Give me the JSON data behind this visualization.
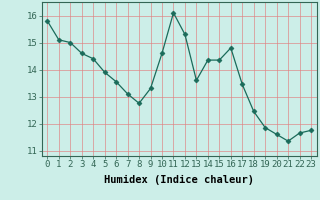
{
  "x": [
    0,
    1,
    2,
    3,
    4,
    5,
    6,
    7,
    8,
    9,
    10,
    11,
    12,
    13,
    14,
    15,
    16,
    17,
    18,
    19,
    20,
    21,
    22,
    23
  ],
  "y": [
    15.8,
    15.1,
    15.0,
    14.6,
    14.4,
    13.9,
    13.55,
    13.1,
    12.75,
    13.3,
    14.6,
    16.1,
    15.3,
    13.6,
    14.35,
    14.35,
    14.8,
    13.45,
    12.45,
    11.85,
    11.6,
    11.35,
    11.65,
    11.75
  ],
  "line_color": "#1a6b5a",
  "marker": "D",
  "marker_size": 2.5,
  "bg_color": "#cceee8",
  "grid_color": "#e08080",
  "xlabel": "Humidex (Indice chaleur)",
  "ylim": [
    10.8,
    16.5
  ],
  "xlim": [
    -0.5,
    23.5
  ],
  "yticks": [
    11,
    12,
    13,
    14,
    15,
    16
  ],
  "xticks": [
    0,
    1,
    2,
    3,
    4,
    5,
    6,
    7,
    8,
    9,
    10,
    11,
    12,
    13,
    14,
    15,
    16,
    17,
    18,
    19,
    20,
    21,
    22,
    23
  ],
  "xlabel_fontsize": 7.5,
  "tick_fontsize": 6.5
}
